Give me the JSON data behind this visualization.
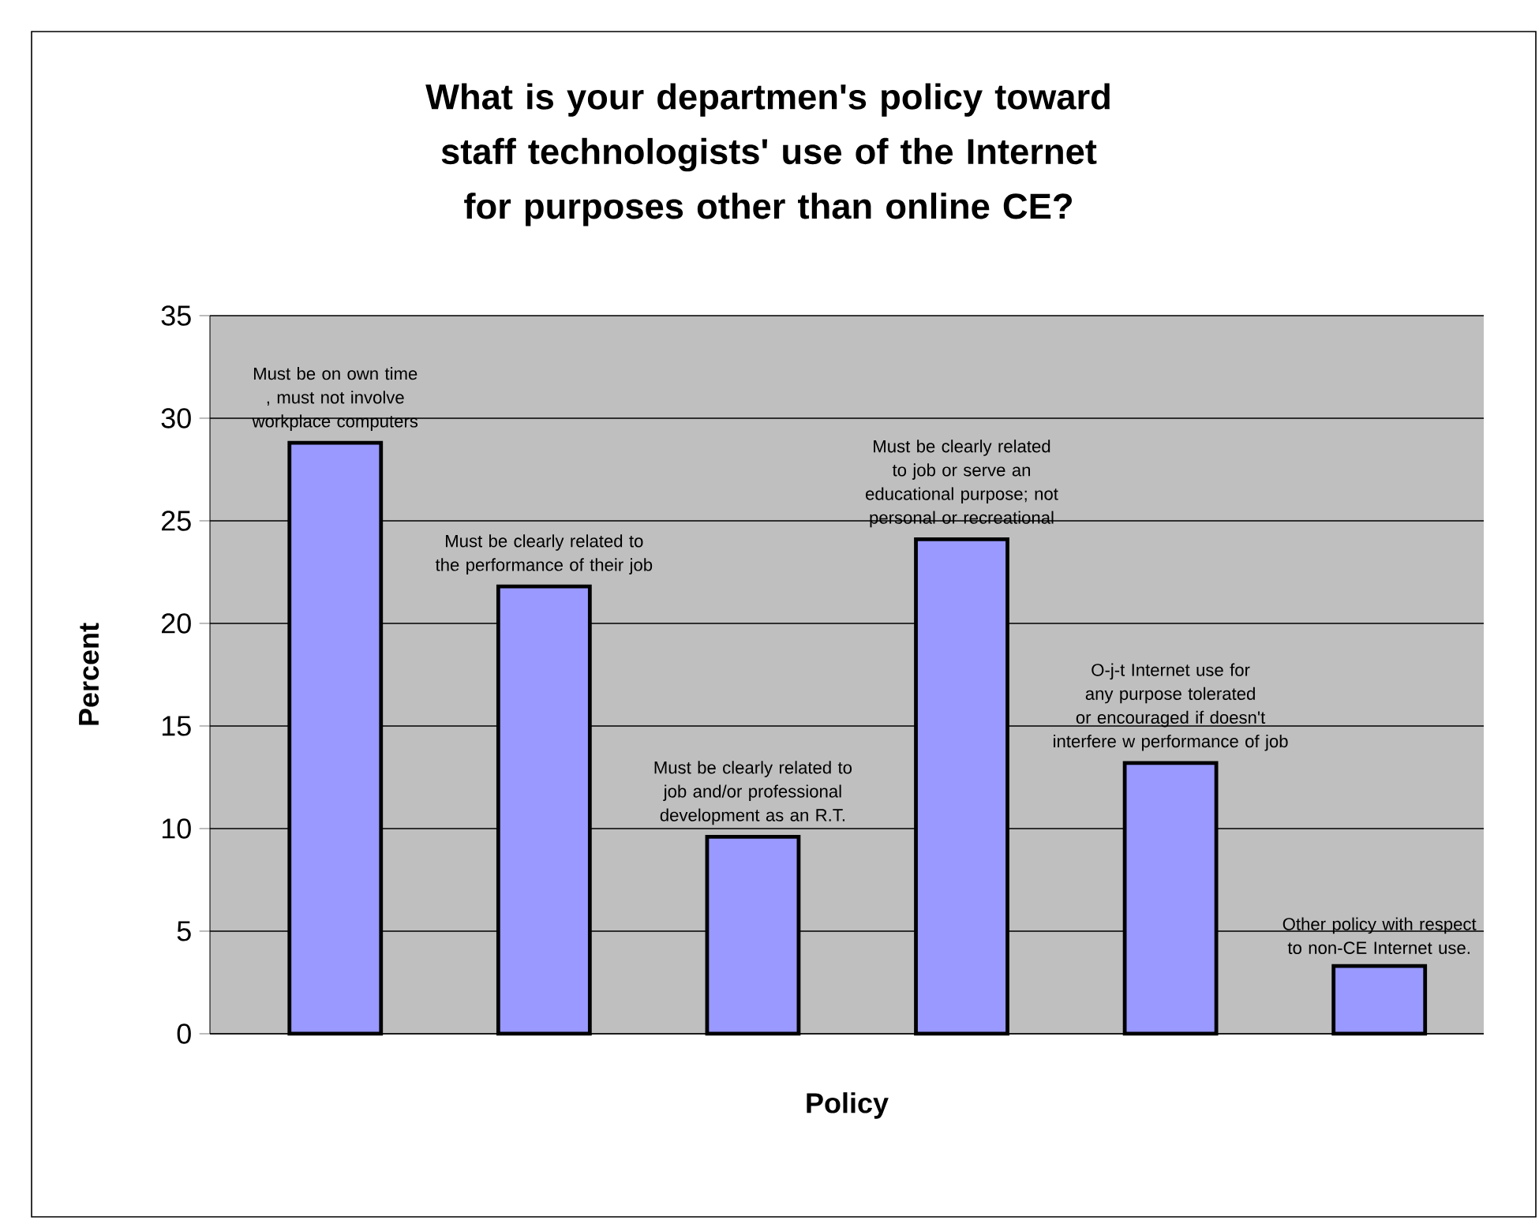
{
  "chart_data": {
    "type": "bar",
    "title": "What is your departmen's policy toward staff technologists' use of the Internet for purposes other than online CE?",
    "xlabel": "Policy",
    "ylabel": "Percent",
    "categories": [
      "Must be on own time , must not involve workplace computers",
      "Must be clearly related to the performance of their job",
      "Must be clearly related to job and/or professional development as an R.T.",
      "Must be clearly related to job or serve an educational purpose; not personal or recreational",
      "O-j-t Internet use for any purpose tolerated or encouraged if doesn't interfere w performance of job",
      "Other policy with respect to non-CE Internet use."
    ],
    "values": [
      28.8,
      21.8,
      9.6,
      24.1,
      13.2,
      3.3
    ],
    "color": "#9999ff",
    "ylim": [
      0,
      35
    ],
    "yticks": [
      0,
      5,
      10,
      15,
      20,
      25,
      30,
      35
    ],
    "grid": "y",
    "tick_labels": "y"
  }
}
